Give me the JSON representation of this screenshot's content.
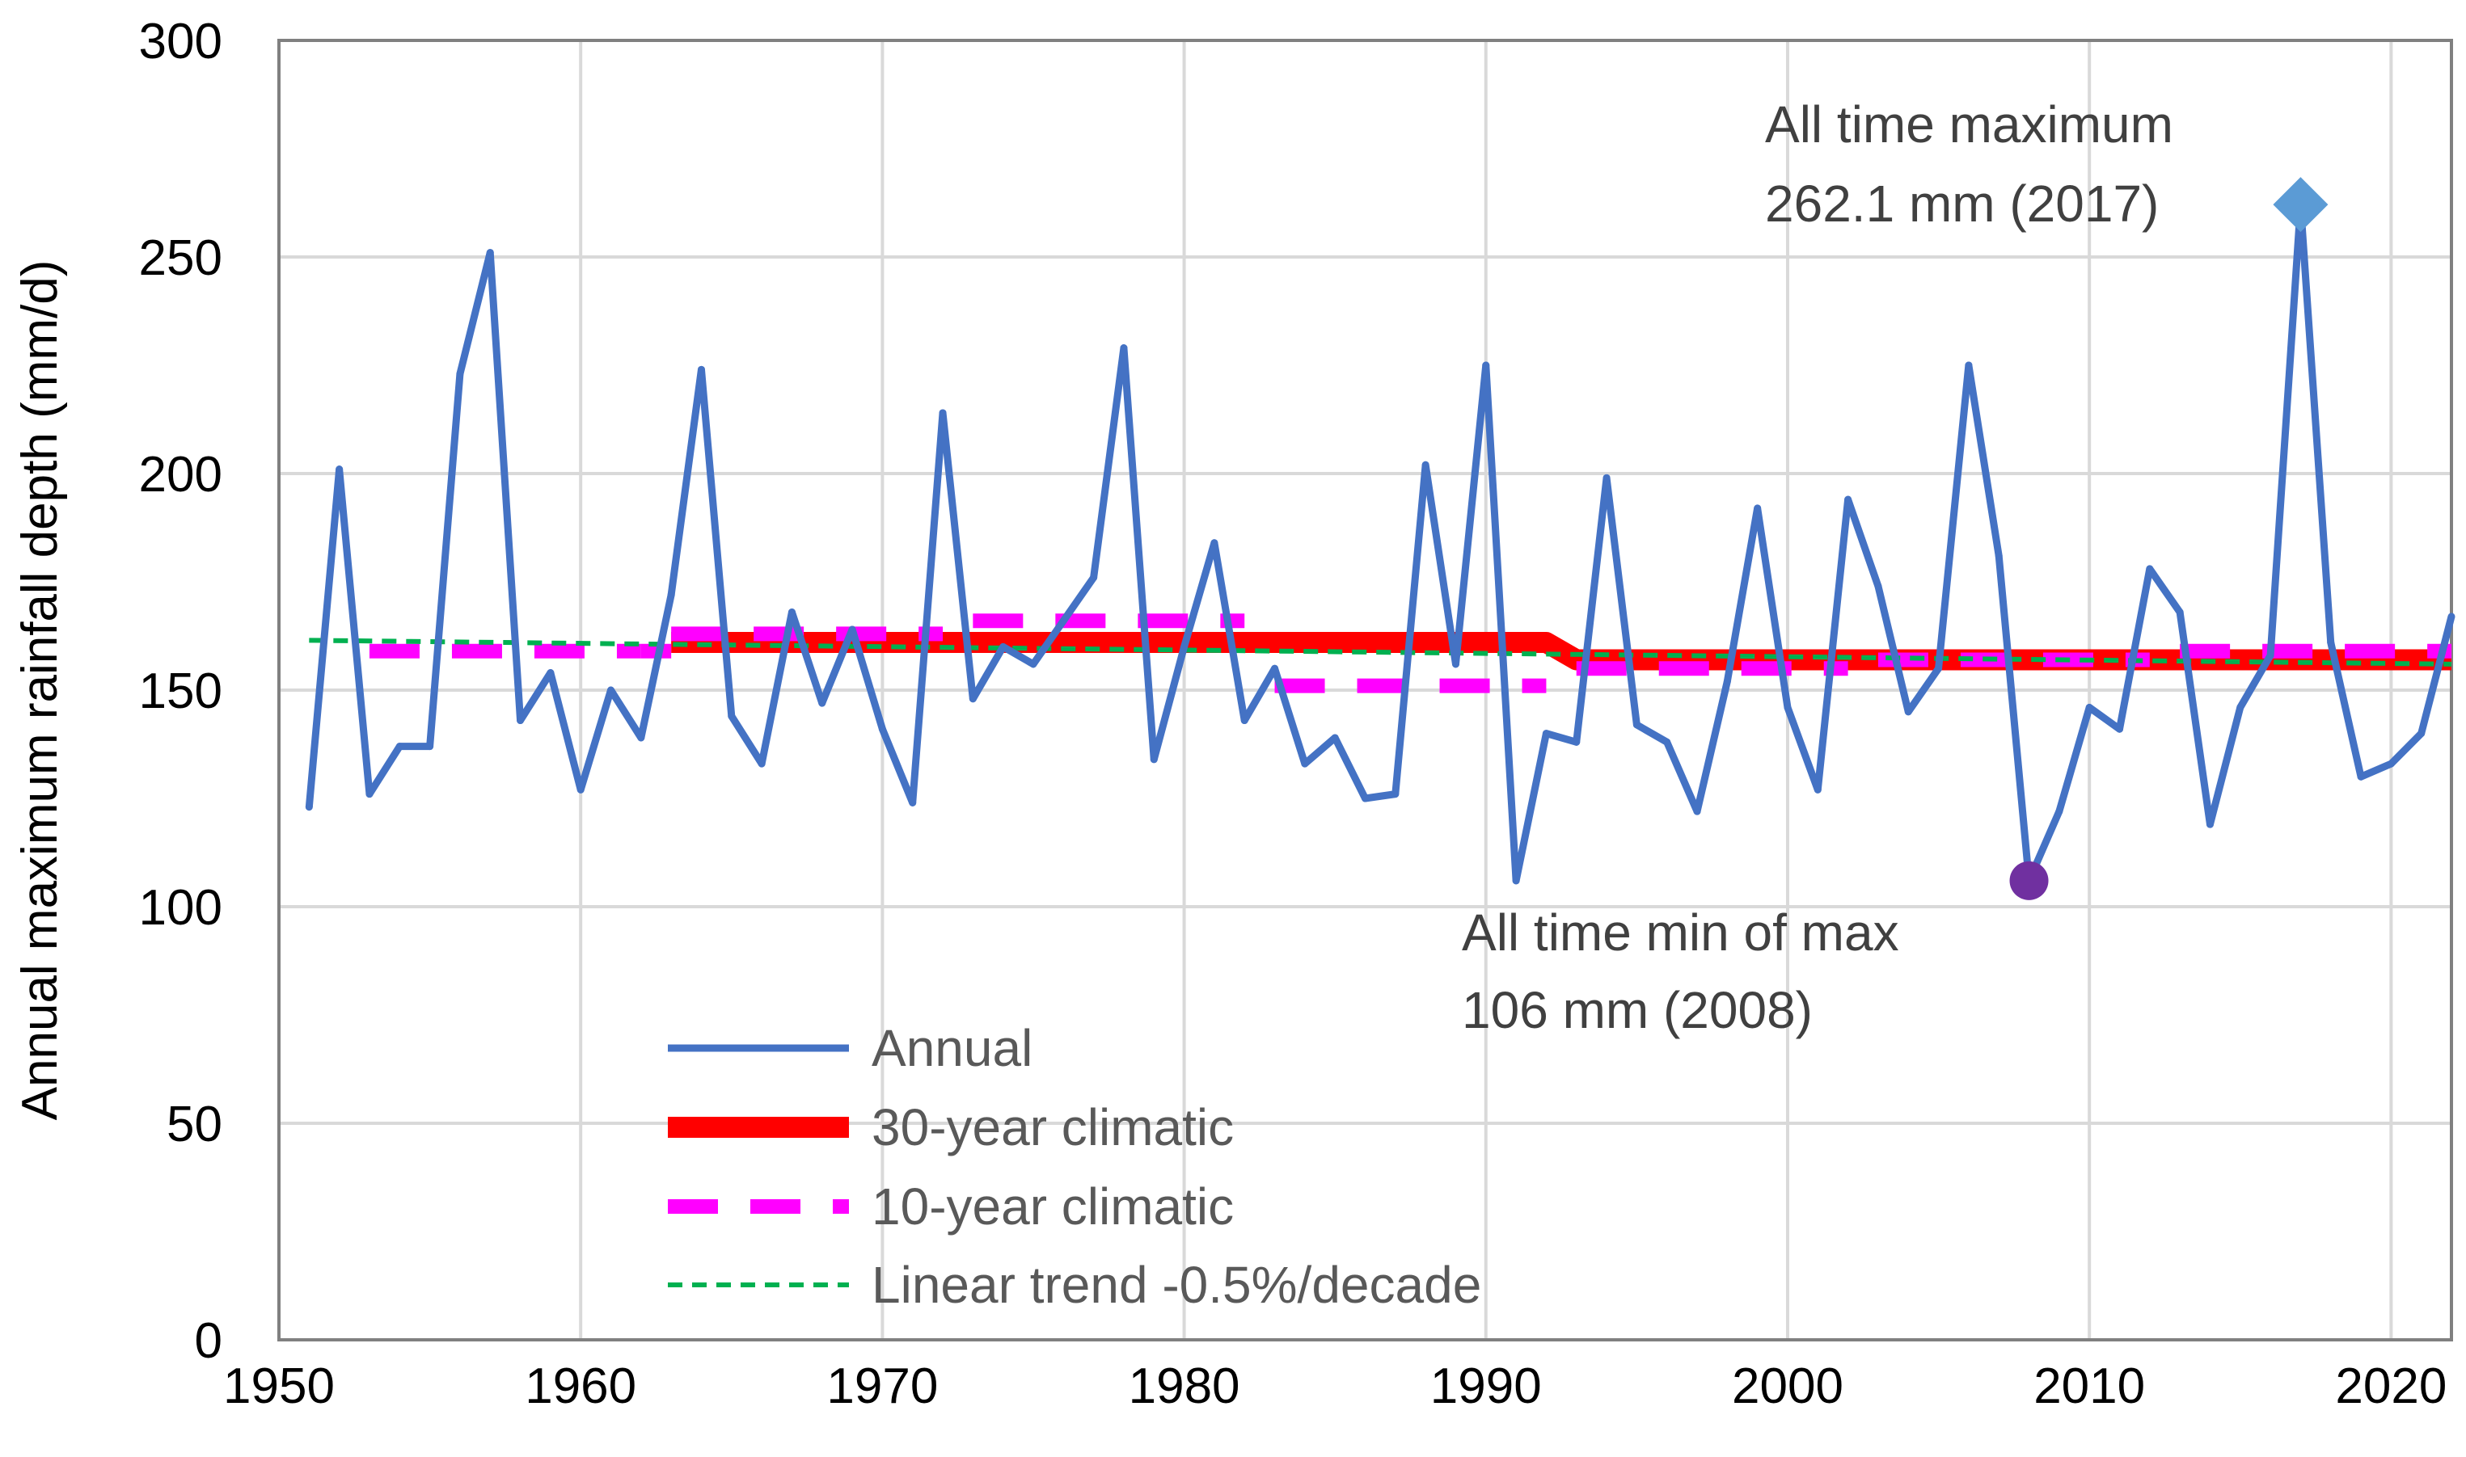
{
  "chart_data": {
    "type": "line",
    "title": "",
    "xlabel": "",
    "ylabel": "Annual maximum  rainfall depth (mm/d)",
    "xlim": [
      1950,
      2022
    ],
    "ylim": [
      0,
      300
    ],
    "x_ticks": [
      1950,
      1960,
      1970,
      1980,
      1990,
      2000,
      2010,
      2020
    ],
    "y_ticks": [
      0,
      50,
      100,
      150,
      200,
      250,
      300
    ],
    "grid": true,
    "legend_position": "bottom-center",
    "series": [
      {
        "name": "Annual",
        "style": "solid",
        "color": "#4472C4",
        "points": [
          [
            1951,
            123
          ],
          [
            1952,
            201
          ],
          [
            1953,
            126
          ],
          [
            1954,
            137
          ],
          [
            1955,
            137
          ],
          [
            1956,
            223
          ],
          [
            1957,
            251
          ],
          [
            1958,
            143
          ],
          [
            1959,
            154
          ],
          [
            1960,
            127
          ],
          [
            1961,
            150
          ],
          [
            1962,
            139
          ],
          [
            1963,
            172
          ],
          [
            1964,
            224
          ],
          [
            1965,
            144
          ],
          [
            1966,
            133
          ],
          [
            1967,
            168
          ],
          [
            1968,
            147
          ],
          [
            1969,
            164
          ],
          [
            1970,
            141
          ],
          [
            1971,
            124
          ],
          [
            1972,
            214
          ],
          [
            1973,
            148
          ],
          [
            1974,
            160
          ],
          [
            1975,
            156
          ],
          [
            1976,
            166
          ],
          [
            1977,
            176
          ],
          [
            1978,
            229
          ],
          [
            1979,
            134
          ],
          [
            1980,
            160
          ],
          [
            1981,
            184
          ],
          [
            1982,
            143
          ],
          [
            1983,
            155
          ],
          [
            1984,
            133
          ],
          [
            1985,
            139
          ],
          [
            1986,
            125
          ],
          [
            1987,
            126
          ],
          [
            1988,
            202
          ],
          [
            1989,
            156
          ],
          [
            1990,
            225
          ],
          [
            1991,
            106
          ],
          [
            1992,
            140
          ],
          [
            1993,
            138
          ],
          [
            1994,
            199
          ],
          [
            1995,
            142
          ],
          [
            1996,
            138
          ],
          [
            1997,
            122
          ],
          [
            1998,
            152
          ],
          [
            1999,
            192
          ],
          [
            2000,
            146
          ],
          [
            2001,
            127
          ],
          [
            2002,
            194
          ],
          [
            2003,
            174
          ],
          [
            2004,
            145
          ],
          [
            2005,
            155
          ],
          [
            2006,
            225
          ],
          [
            2007,
            181
          ],
          [
            2008,
            106
          ],
          [
            2009,
            122
          ],
          [
            2010,
            146
          ],
          [
            2011,
            141
          ],
          [
            2012,
            178
          ],
          [
            2013,
            168
          ],
          [
            2014,
            119
          ],
          [
            2015,
            146
          ],
          [
            2016,
            158
          ],
          [
            2017,
            262.1
          ],
          [
            2018,
            161
          ],
          [
            2019,
            130
          ],
          [
            2020,
            133
          ],
          [
            2021,
            140
          ],
          [
            2022,
            167
          ]
        ]
      },
      {
        "name": "30-year climatic",
        "style": "thick-solid",
        "color": "#FF0000",
        "points": [
          [
            1963,
            161
          ],
          [
            1992,
            161
          ],
          [
            1993,
            157
          ],
          [
            2022,
            157
          ]
        ]
      },
      {
        "name": "10-year climatic",
        "style": "dashed",
        "color": "#FF00FF",
        "segments": [
          {
            "x": [
              1953,
              1962
            ],
            "y": 159
          },
          {
            "x": [
              1962,
              1963
            ],
            "y": 159
          },
          {
            "x": [
              1963,
              1972
            ],
            "y": 163
          },
          {
            "x": [
              1973,
              1982
            ],
            "y": 166
          },
          {
            "x": [
              1983,
              1992
            ],
            "y": 151
          },
          {
            "x": [
              1993,
              2002
            ],
            "y": 155
          },
          {
            "x": [
              2003,
              2012
            ],
            "y": 157
          },
          {
            "x": [
              2013,
              2022
            ],
            "y": 159
          }
        ]
      },
      {
        "name": "Linear trend -0.5%/decade",
        "style": "dotted",
        "color": "#00B050",
        "points": [
          [
            1951,
            161.5
          ],
          [
            2022,
            156
          ]
        ]
      }
    ],
    "markers": [
      {
        "name": "all-time-maximum",
        "shape": "diamond",
        "color": "#5B9BD5",
        "x": 2017,
        "y": 262.1
      },
      {
        "name": "all-time-minimum",
        "shape": "circle",
        "color": "#7030A0",
        "x": 2008,
        "y": 106
      }
    ],
    "annotations": {
      "max_line1": "All time maximum",
      "max_line2": "262.1 mm (2017)",
      "min_line1": "All time min of max",
      "min_line2": "106 mm (2008)"
    },
    "legend": [
      {
        "label": "Annual"
      },
      {
        "label": "30-year climatic"
      },
      {
        "label": "10-year climatic"
      },
      {
        "label": "Linear trend -0.5%/decade"
      }
    ]
  }
}
